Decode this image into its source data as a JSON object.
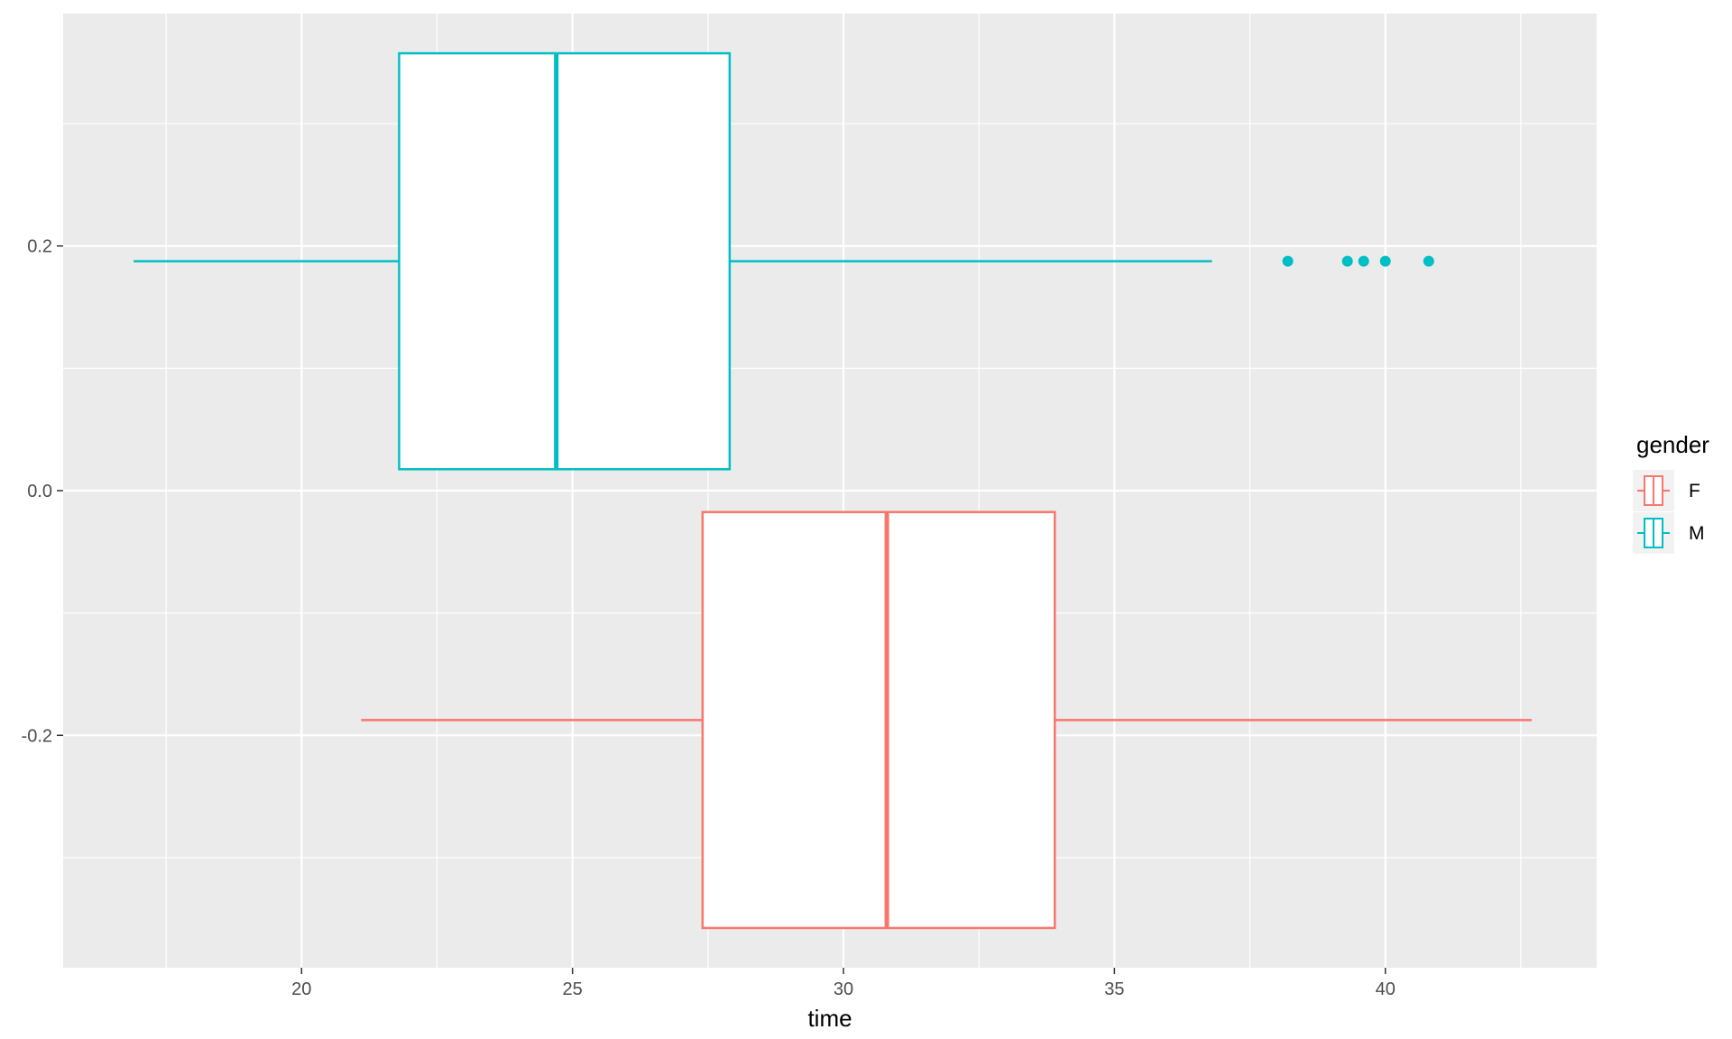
{
  "chart_data": {
    "type": "boxplot",
    "orientation": "horizontal",
    "xlabel": "time",
    "ylabel": "",
    "xlim": [
      15.6,
      43.9
    ],
    "ylim": [
      -0.39,
      0.39
    ],
    "x_ticks": [
      20,
      25,
      30,
      35,
      40
    ],
    "x_tick_labels": [
      "20",
      "25",
      "30",
      "35",
      "40"
    ],
    "y_ticks": [
      -0.2,
      0.0,
      0.2
    ],
    "y_tick_labels": [
      "-0.2",
      "0.0",
      "0.2"
    ],
    "grid": true,
    "legend": {
      "title": "gender",
      "position": "right"
    },
    "series": [
      {
        "name": "F",
        "color": "#F8766D",
        "y_center": -0.1875,
        "box_y_range": [
          -0.3575,
          -0.0175
        ],
        "whisker_low": 21.1,
        "q1": 27.4,
        "median": 30.8,
        "q3": 33.9,
        "whisker_high": 42.7,
        "outliers": []
      },
      {
        "name": "M",
        "color": "#00BFC4",
        "y_center": 0.1875,
        "box_y_range": [
          0.0175,
          0.3575
        ],
        "whisker_low": 16.9,
        "q1": 21.8,
        "median": 24.7,
        "q3": 27.9,
        "whisker_high": 36.8,
        "outliers": [
          38.2,
          39.3,
          39.6,
          40.0,
          40.8
        ]
      }
    ]
  }
}
